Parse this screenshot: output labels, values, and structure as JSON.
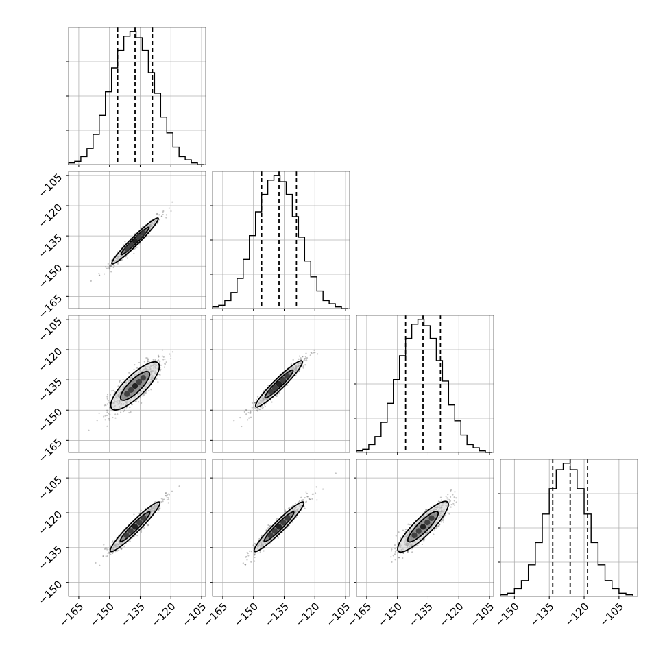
{
  "chart_data": {
    "type": "corner",
    "n_params": 4,
    "grid": true,
    "quantile_lines": "dashed",
    "colors": {
      "ink": "#000000",
      "grid": "#b0b0b0",
      "fill_outer": "#d0d0d0",
      "fill_inner": "#777777",
      "points": "#555555"
    },
    "diagonal": [
      {
        "param_index": 0,
        "x_range": [
          -170,
          -103
        ],
        "bin_edges": [
          -170,
          -167,
          -164,
          -161,
          -158,
          -155,
          -152,
          -149,
          -146,
          -143,
          -140,
          -137,
          -134,
          -131,
          -128,
          -125,
          -122,
          -119,
          -116,
          -113,
          -110,
          -107,
          -104
        ],
        "counts": [
          1,
          2,
          5,
          10,
          19,
          31,
          46,
          61,
          72,
          81,
          84,
          80,
          72,
          58,
          45,
          30,
          20,
          11,
          5,
          3,
          1,
          0
        ],
        "quantiles": [
          -146.0,
          -137.5,
          -129.0
        ]
      },
      {
        "param_index": 1,
        "x_range": [
          -170,
          -103
        ],
        "bin_edges": [
          -170,
          -167,
          -164,
          -161,
          -158,
          -155,
          -152,
          -149,
          -146,
          -143,
          -140,
          -137,
          -134,
          -131,
          -128,
          -125,
          -122,
          -119,
          -116,
          -113,
          -110,
          -107,
          -104
        ],
        "counts": [
          1,
          2,
          5,
          10,
          19,
          31,
          46,
          61,
          72,
          81,
          84,
          80,
          72,
          58,
          45,
          30,
          20,
          11,
          5,
          3,
          1,
          0
        ],
        "quantiles": [
          -146.0,
          -137.5,
          -129.0
        ]
      },
      {
        "param_index": 2,
        "x_range": [
          -170,
          -103
        ],
        "bin_edges": [
          -170,
          -167,
          -164,
          -161,
          -158,
          -155,
          -152,
          -149,
          -146,
          -143,
          -140,
          -137,
          -134,
          -131,
          -128,
          -125,
          -122,
          -119,
          -116,
          -113,
          -110,
          -107,
          -104
        ],
        "counts": [
          1,
          2,
          5,
          10,
          19,
          31,
          46,
          61,
          72,
          81,
          84,
          80,
          72,
          58,
          45,
          30,
          20,
          11,
          5,
          3,
          1,
          0
        ],
        "quantiles": [
          -146.0,
          -137.5,
          -129.0
        ]
      },
      {
        "param_index": 3,
        "x_range": [
          -156,
          -97
        ],
        "bin_edges": [
          -156,
          -153,
          -150,
          -147,
          -144,
          -141,
          -138,
          -135,
          -132,
          -129,
          -126,
          -123,
          -120,
          -117,
          -114,
          -111,
          -108,
          -105,
          -102,
          -99
        ],
        "counts": [
          1,
          2,
          5,
          10,
          20,
          34,
          52,
          68,
          80,
          84,
          80,
          68,
          52,
          34,
          20,
          10,
          5,
          2,
          1
        ],
        "quantiles": [
          -133.5,
          -126.0,
          -118.5
        ]
      }
    ],
    "pairs": [
      {
        "row": 1,
        "col": 0,
        "mean": [
          -137.5,
          -137.5
        ],
        "x_range": [
          -170,
          -103
        ],
        "y_range": [
          -171,
          -103
        ],
        "slope": 1.0,
        "perp_sd": 1.0,
        "long_sd": 8.0
      },
      {
        "row": 2,
        "col": 0,
        "mean": [
          -137.5,
          -138.0
        ],
        "x_range": [
          -170,
          -103
        ],
        "y_range": [
          -171,
          -103
        ],
        "slope": 1.0,
        "perp_sd": 2.6,
        "long_sd": 8.0
      },
      {
        "row": 2,
        "col": 1,
        "mean": [
          -137.5,
          -137.0
        ],
        "x_range": [
          -170,
          -103
        ],
        "y_range": [
          -171,
          -103
        ],
        "slope": 1.0,
        "perp_sd": 1.3,
        "long_sd": 8.0
      },
      {
        "row": 3,
        "col": 0,
        "mean": [
          -137.5,
          -126.0
        ],
        "x_range": [
          -170,
          -103
        ],
        "y_range": [
          -156,
          -97
        ],
        "slope": 0.88,
        "perp_sd": 1.2,
        "long_sd": 8.0
      },
      {
        "row": 3,
        "col": 1,
        "mean": [
          -137.5,
          -126.0
        ],
        "x_range": [
          -170,
          -103
        ],
        "y_range": [
          -156,
          -97
        ],
        "slope": 0.88,
        "perp_sd": 1.2,
        "long_sd": 8.0
      },
      {
        "row": 3,
        "col": 2,
        "mean": [
          -137.5,
          -126.0
        ],
        "x_range": [
          -170,
          -103
        ],
        "y_range": [
          -156,
          -97
        ],
        "slope": 0.88,
        "perp_sd": 2.0,
        "long_sd": 8.0
      }
    ],
    "x_tick_labels": [
      [
        "−165",
        "−150",
        "−135",
        "−120",
        "−105"
      ],
      [
        "−165",
        "−150",
        "−135",
        "−120",
        "−105"
      ],
      [
        "−165",
        "−150",
        "−135",
        "−120",
        "−105"
      ],
      [
        "−150",
        "−135",
        "−120",
        "−105"
      ]
    ],
    "x_ticks": [
      [
        -165,
        -150,
        -135,
        -120,
        -105
      ],
      [
        -165,
        -150,
        -135,
        -120,
        -105
      ],
      [
        -165,
        -150,
        -135,
        -120,
        -105
      ],
      [
        -150,
        -135,
        -120,
        -105
      ]
    ],
    "y_tick_labels": [
      null,
      [
        "−105",
        "−120",
        "−135",
        "−150",
        "−165"
      ],
      [
        "−105",
        "−120",
        "−135",
        "−150",
        "−165"
      ],
      [
        "−105",
        "−120",
        "−135",
        "−150"
      ]
    ],
    "y_ticks": [
      null,
      [
        -105,
        -120,
        -135,
        -150,
        -165
      ],
      [
        -105,
        -120,
        -135,
        -150,
        -165
      ],
      [
        -105,
        -120,
        -135,
        -150
      ]
    ]
  }
}
